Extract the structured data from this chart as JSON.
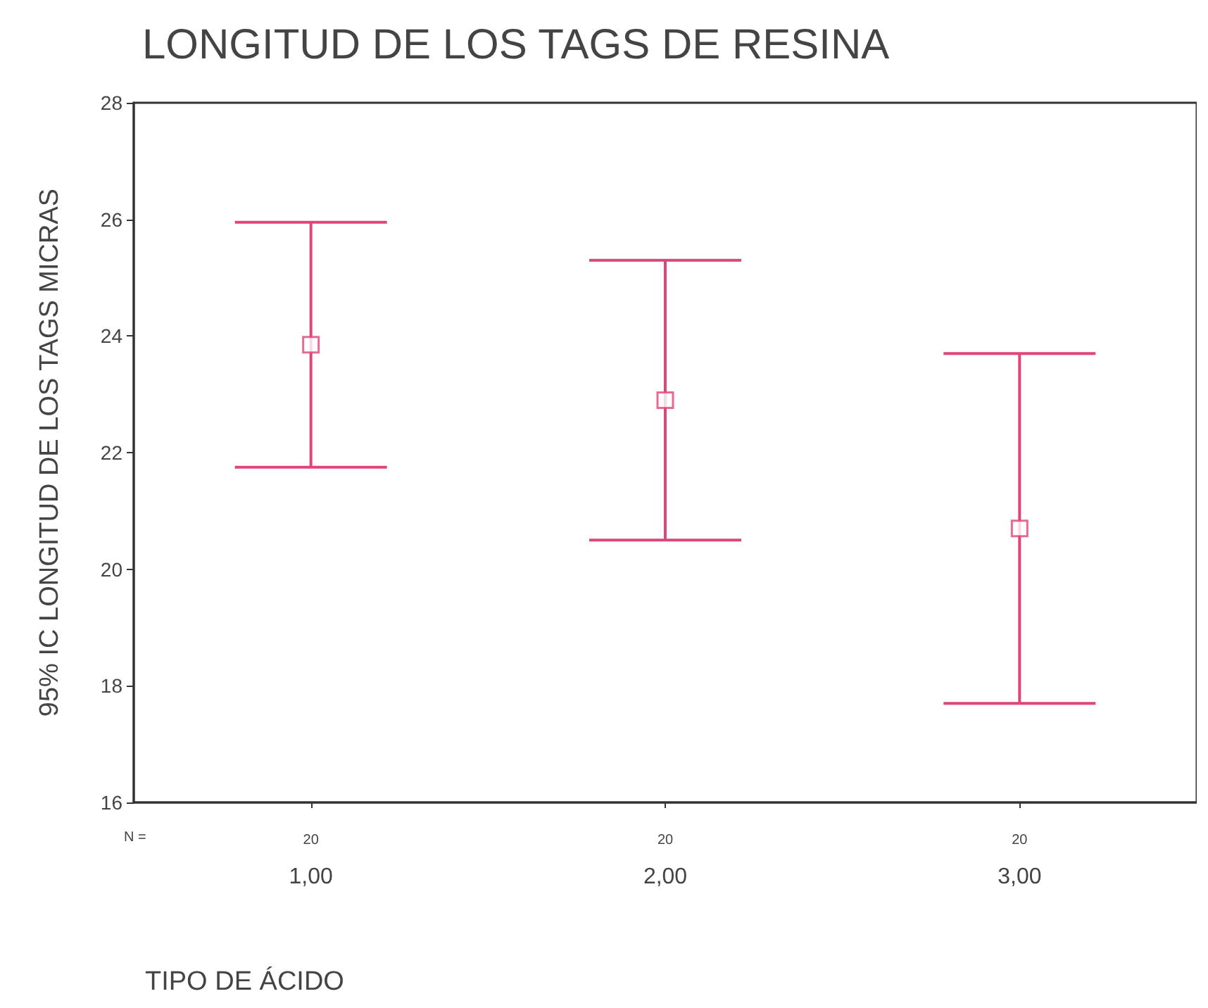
{
  "chart_data": {
    "type": "scatter",
    "title": "LONGITUD DE LOS TAGS DE RESINA",
    "ylabel": "95% IC LONGITUD DE LOS TAGS MICRAS",
    "xlabel": "TIPO DE ÁCIDO",
    "categories": [
      "1,00",
      "2,00",
      "3,00"
    ],
    "values": [
      23.85,
      22.9,
      20.7
    ],
    "errors": [
      2.1,
      2.4,
      3.0
    ],
    "color": "#e0457a",
    "marker": "square",
    "grid": false,
    "ylim": [
      16,
      28
    ],
    "yticks": [
      16,
      18,
      20,
      22,
      24,
      26,
      28
    ],
    "annotations": [
      "N =",
      "20",
      "20",
      "20"
    ]
  }
}
